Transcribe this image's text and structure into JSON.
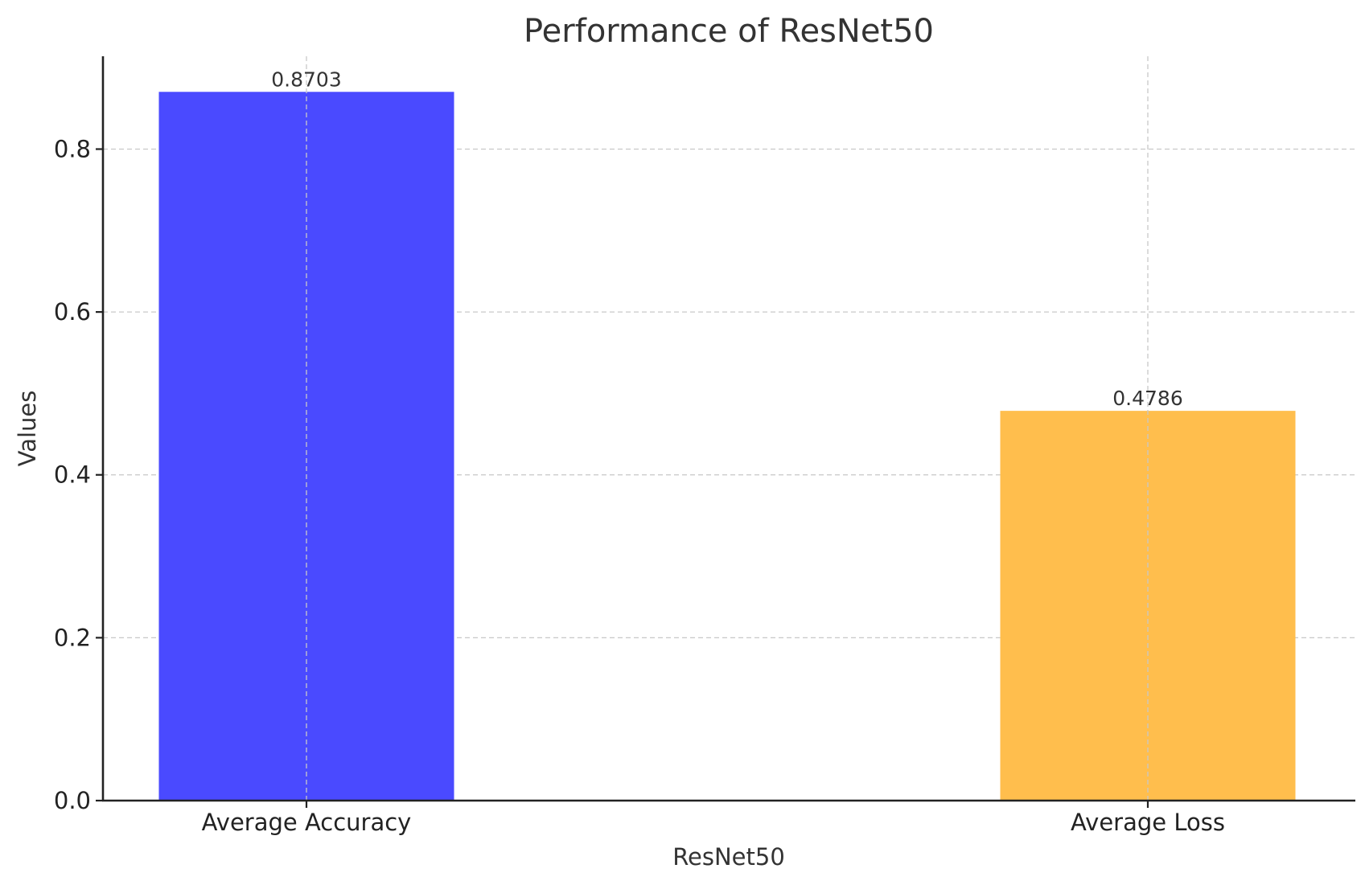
{
  "chart_data": {
    "type": "bar",
    "title": "Performance of ResNet50",
    "xlabel": "ResNet50",
    "ylabel": "Values",
    "categories": [
      "Average Accuracy",
      "Average Loss"
    ],
    "values": [
      0.8703,
      0.4786
    ],
    "value_labels": [
      "0.8703",
      "0.4786"
    ],
    "colors": [
      "#4a4aff",
      "#ffbe4d"
    ],
    "ylim": [
      0,
      0.914
    ],
    "yticks": [
      0.0,
      0.2,
      0.4,
      0.6,
      0.8
    ],
    "ytick_labels": [
      "0.0",
      "0.2",
      "0.4",
      "0.6",
      "0.8"
    ],
    "grid": true,
    "legend": "none"
  }
}
